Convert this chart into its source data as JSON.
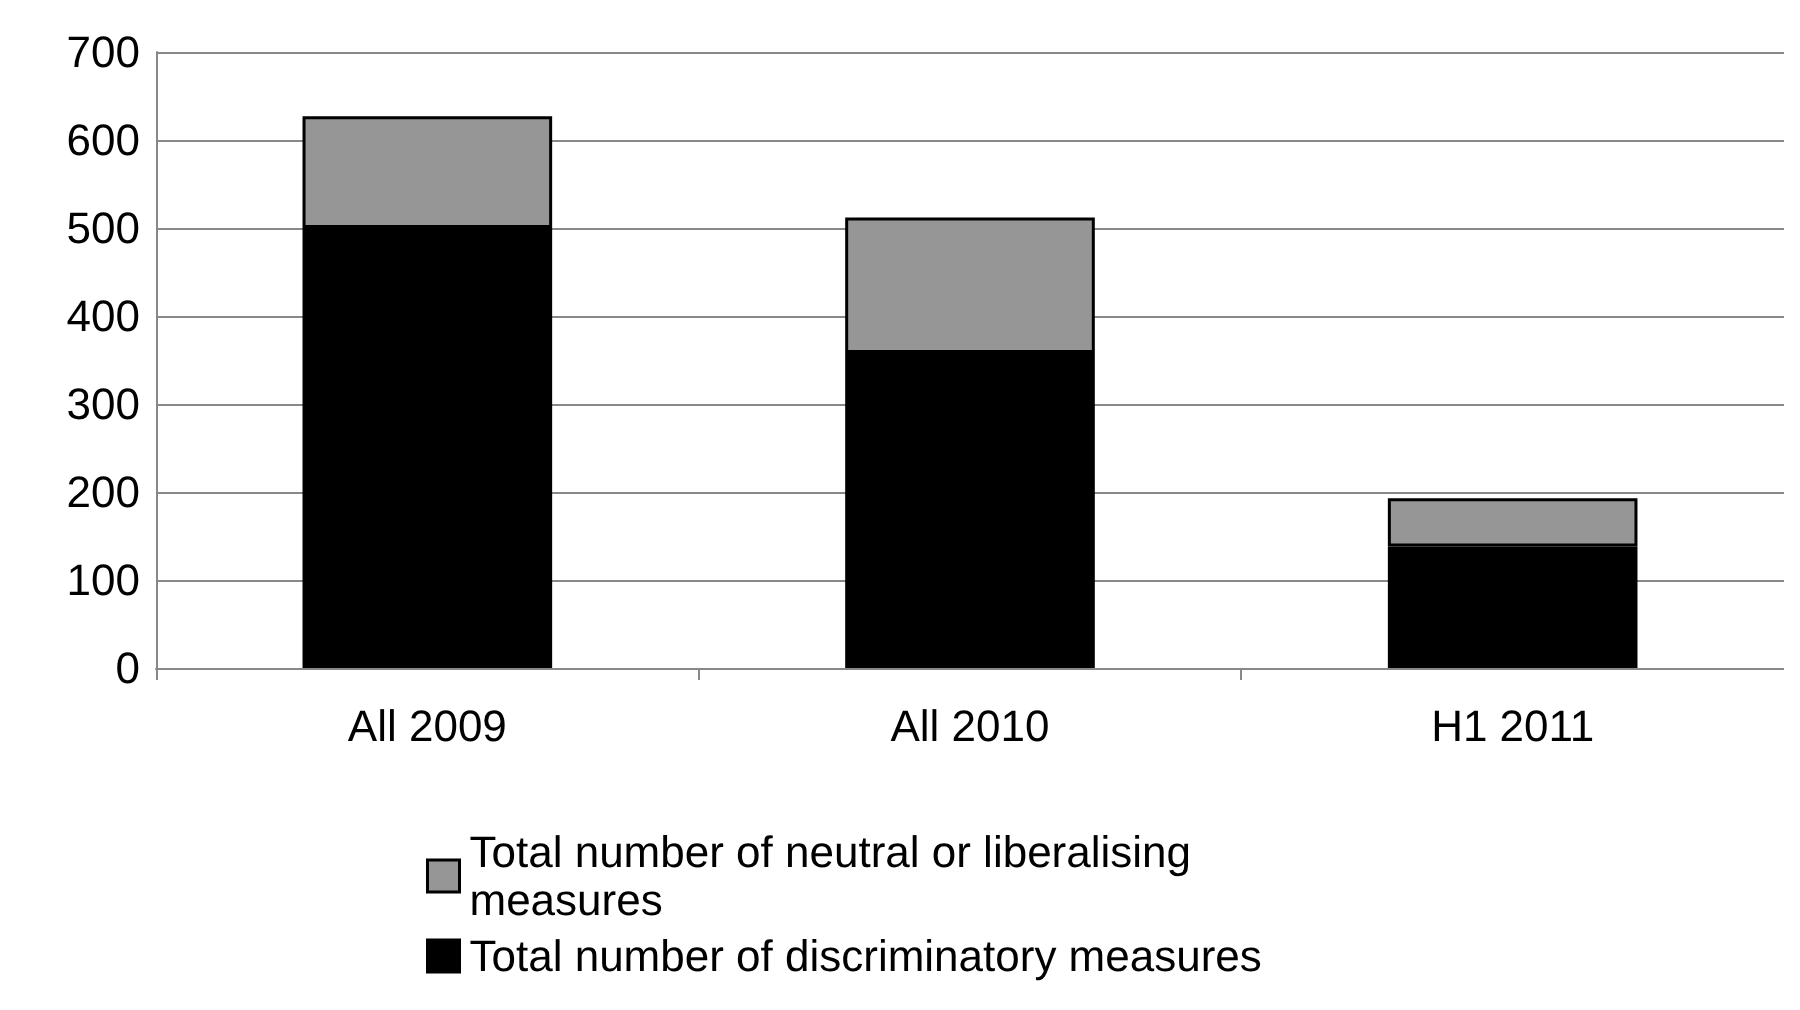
{
  "chart_data": {
    "type": "bar",
    "stacked": true,
    "categories": [
      "All 2009",
      "All 2010",
      "H1 2011"
    ],
    "series": [
      {
        "name": "Total number of discriminatory measures",
        "color": "#000000",
        "values": [
          500,
          358,
          138
        ]
      },
      {
        "name": "Total number of neutral or liberalising measures",
        "color": "#969696",
        "values": [
          127,
          154,
          55
        ]
      }
    ],
    "ylim": [
      0,
      700
    ],
    "yticks": [
      0,
      100,
      200,
      300,
      400,
      500,
      600,
      700
    ],
    "grid": "y",
    "legend": "bottom"
  }
}
